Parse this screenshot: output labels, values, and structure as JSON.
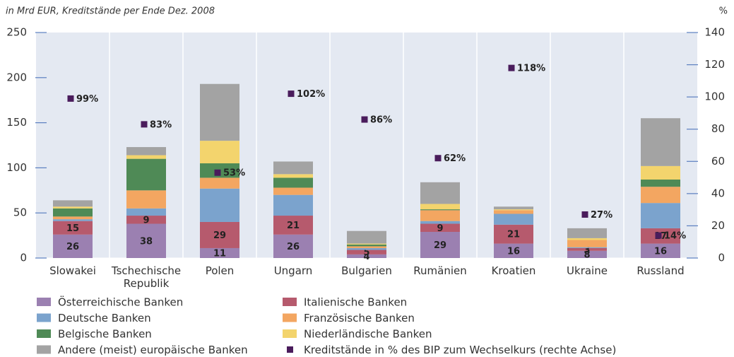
{
  "chart_data": {
    "type": "bar",
    "stacked": true,
    "y_label": "in Mrd EUR,  Kreditstände per Ende Dez. 2008",
    "y2_label": "%",
    "categories": [
      "Slowakei",
      "Tschechische Republik",
      "Polen",
      "Ungarn",
      "Bulgarien",
      "Rumänien",
      "Kroatien",
      "Ukraine",
      "Russland"
    ],
    "ylim": [
      0,
      250
    ],
    "yticks": [
      0,
      50,
      100,
      150,
      200,
      250
    ],
    "y2lim": [
      0,
      140
    ],
    "y2ticks": [
      0,
      20,
      40,
      60,
      80,
      100,
      120,
      140
    ],
    "series": [
      {
        "name": "Österreichische Banken",
        "color": "#9b80b1",
        "show_labels": true,
        "values": [
          26,
          38,
          11,
          26,
          4,
          29,
          16,
          8,
          16
        ]
      },
      {
        "name": "Italienische Banken",
        "color": "#b65a6d",
        "show_labels": true,
        "values": [
          15,
          9,
          29,
          21,
          5,
          9,
          21,
          3,
          17
        ]
      },
      {
        "name": "Deutsche Banken",
        "color": "#7ba3cd",
        "values": [
          2,
          8,
          37,
          23,
          2,
          3,
          12,
          1,
          28
        ]
      },
      {
        "name": "Französische Banken",
        "color": "#f3a661",
        "values": [
          3,
          20,
          12,
          8,
          2,
          12,
          4,
          8,
          18
        ]
      },
      {
        "name": "Belgische Banken",
        "color": "#4f8a56",
        "values": [
          9,
          35,
          16,
          11,
          2,
          1,
          0,
          0,
          8
        ]
      },
      {
        "name": "Niederländische Banken",
        "color": "#f3d46d",
        "values": [
          2,
          4,
          25,
          4,
          1,
          6,
          1,
          2,
          15
        ]
      },
      {
        "name": "Andere (meist) europäische Banken",
        "color": "#a3a3a3",
        "values": [
          7,
          9,
          63,
          14,
          14,
          24,
          3,
          11,
          53
        ]
      },
      {
        "name": "Kreditstände in % des BIP zum Wechselkurs (rechte Achse)",
        "type": "scatter",
        "axis": "y2",
        "color": "#4a1c5c",
        "values": [
          99,
          83,
          53,
          102,
          86,
          62,
          118,
          27,
          14
        ],
        "value_labels": [
          "99%",
          "83%",
          "53%",
          "102%",
          "86%",
          "62%",
          "118%",
          "27%",
          "14%"
        ]
      }
    ]
  }
}
